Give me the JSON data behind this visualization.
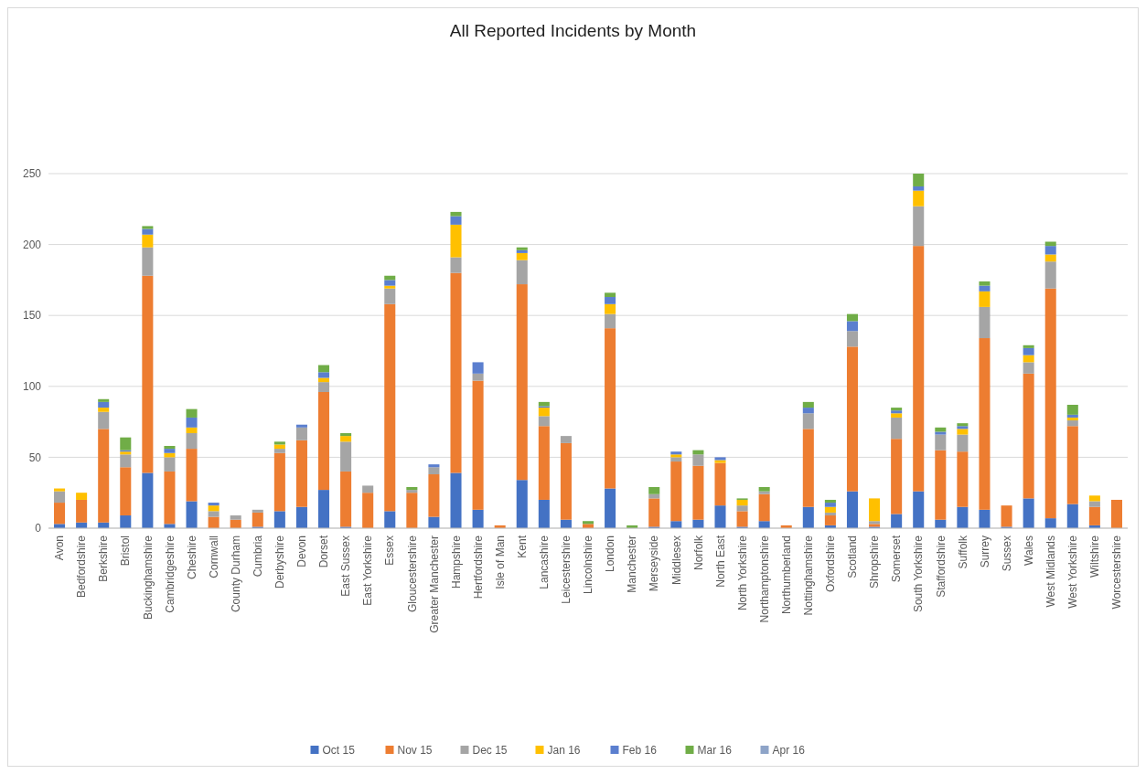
{
  "chart_data": {
    "type": "bar",
    "title": "All Reported Incidents by Month",
    "stacked": true,
    "grid": "y",
    "legend": "bottom",
    "ylim": [
      0,
      250
    ],
    "yticks": [
      0,
      50,
      100,
      150,
      200,
      250
    ],
    "categories": [
      "Avon",
      "Bedfordshire",
      "Berkshire",
      "Bristol",
      "Buckinghamshire",
      "Cambridgeshire",
      "Cheshire",
      "Cornwall",
      "County Durham",
      "Cumbria",
      "Derbyshire",
      "Devon",
      "Dorset",
      "East Sussex",
      "East Yorkshire",
      "Essex",
      "Gloucestershire",
      "Greater Manchester",
      "Hampshire",
      "Hertfordshire",
      "Isle of Man",
      "Kent",
      "Lancashire",
      "Leicestershire",
      "Lincolnshire",
      "London",
      "Manchester",
      "Merseyside",
      "Middlesex",
      "Norfolk",
      "North East",
      "North Yorkshire",
      "Northamptonshire",
      "Northumberland",
      "Nottinghamshire",
      "Oxfordshire",
      "Scotland",
      "Shropshire",
      "Somerset",
      "South Yorkshire",
      "Staffordshire",
      "Suffolk",
      "Surrey",
      "Sussex",
      "Wales",
      "West Midlands",
      "West Yorkshire",
      "Wiltshire",
      "Worcestershire"
    ],
    "series": [
      {
        "name": "Oct 15",
        "color": "#4472c4",
        "values": [
          3,
          4,
          4,
          9,
          39,
          3,
          19,
          0,
          0,
          1,
          12,
          15,
          27,
          1,
          0,
          12,
          0,
          8,
          39,
          13,
          0,
          34,
          20,
          6,
          0,
          28,
          0,
          1,
          5,
          6,
          16,
          1,
          5,
          0,
          15,
          2,
          26,
          1,
          10,
          26,
          6,
          15,
          13,
          1,
          21,
          7,
          17,
          2,
          0
        ]
      },
      {
        "name": "Nov 15",
        "color": "#ed7d31",
        "values": [
          15,
          16,
          66,
          34,
          139,
          37,
          37,
          8,
          6,
          10,
          41,
          47,
          69,
          39,
          25,
          146,
          25,
          30,
          141,
          91,
          2,
          138,
          52,
          54,
          3,
          113,
          0,
          20,
          42,
          38,
          30,
          11,
          19,
          2,
          55,
          7,
          102,
          2,
          53,
          173,
          49,
          39,
          121,
          15,
          88,
          162,
          55,
          13,
          20
        ]
      },
      {
        "name": "Dec 15",
        "color": "#a5a5a5",
        "values": [
          8,
          null,
          12,
          9,
          20,
          10,
          11,
          4,
          3,
          2,
          3,
          9,
          7,
          21,
          5,
          11,
          2,
          5,
          11,
          5,
          0,
          17,
          7,
          5,
          null,
          10,
          0,
          3,
          3,
          8,
          0,
          4,
          2,
          0,
          11,
          2,
          11,
          2,
          15,
          28,
          11,
          12,
          22,
          0,
          8,
          19,
          4,
          4,
          0
        ]
      },
      {
        "name": "Jan 16",
        "color": "#ffc000",
        "values": [
          2,
          5,
          3,
          2,
          9,
          3,
          4,
          4,
          0,
          0,
          3,
          0,
          3,
          4,
          0,
          2,
          0,
          0,
          23,
          0,
          0,
          5,
          6,
          0,
          0,
          7,
          0,
          0,
          2,
          0,
          2,
          4,
          0,
          0,
          0,
          4,
          0,
          16,
          3,
          11,
          0,
          4,
          11,
          0,
          5,
          5,
          2,
          4,
          0
        ]
      },
      {
        "name": "Feb 16",
        "color": "#5b7fcf",
        "values": [
          0,
          0,
          4,
          1,
          4,
          3,
          7,
          2,
          0,
          0,
          0,
          2,
          4,
          0,
          0,
          4,
          0,
          2,
          6,
          8,
          0,
          2,
          1,
          0,
          0,
          5,
          0,
          0,
          2,
          0,
          2,
          0,
          0,
          0,
          4,
          3,
          7,
          0,
          2,
          3,
          2,
          2,
          4,
          0,
          5,
          6,
          2,
          0,
          0
        ]
      },
      {
        "name": "Mar 16",
        "color": "#70ad47",
        "values": [
          0,
          0,
          2,
          9,
          2,
          2,
          6,
          0,
          0,
          0,
          2,
          0,
          5,
          2,
          0,
          3,
          2,
          0,
          3,
          0,
          0,
          2,
          3,
          0,
          2,
          3,
          2,
          5,
          0,
          3,
          0,
          1,
          3,
          0,
          4,
          2,
          5,
          0,
          2,
          9,
          3,
          2,
          3,
          0,
          2,
          3,
          7,
          0,
          0
        ]
      },
      {
        "name": "Apr 16",
        "color": "#8ea4c8",
        "values": [
          0,
          0,
          0,
          0,
          0,
          0,
          0,
          0,
          0,
          0,
          0,
          0,
          0,
          0,
          0,
          0,
          0,
          0,
          0,
          0,
          0,
          0,
          0,
          0,
          0,
          0,
          0,
          0,
          0,
          0,
          0,
          0,
          0,
          0,
          0,
          0,
          0,
          0,
          0,
          0,
          0,
          0,
          0,
          0,
          0,
          0,
          0,
          0,
          0
        ]
      }
    ]
  }
}
